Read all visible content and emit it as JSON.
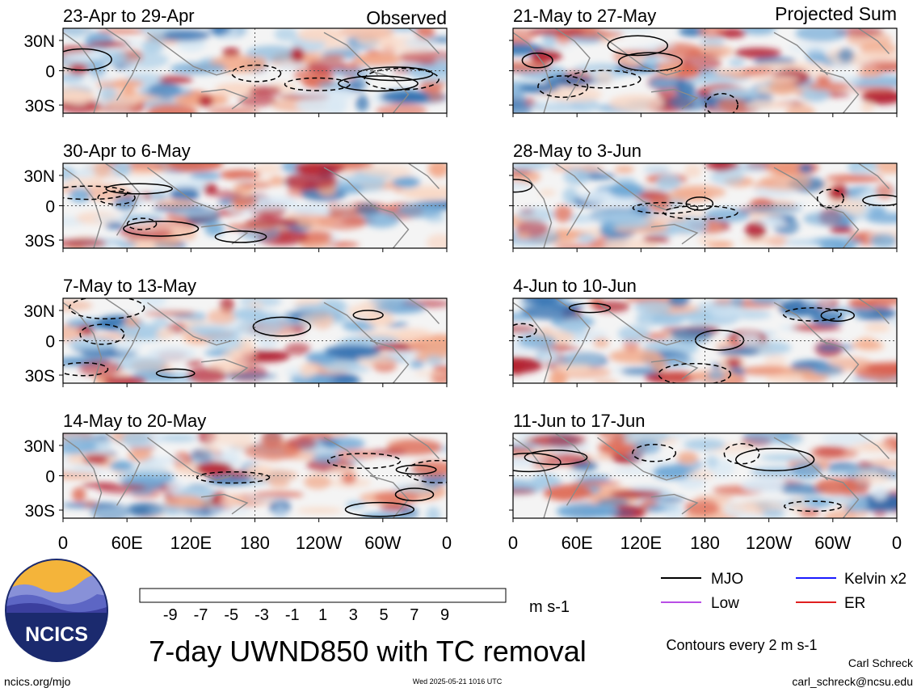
{
  "header": {
    "left_label": "Observed",
    "right_label": "Projected Sum"
  },
  "chart_data": {
    "type": "heatmap",
    "title": "7-day UWND850 with TC removal",
    "units": "m s-1",
    "contour_note": "Contours every 2 m s-1",
    "lat_ticks": [
      "30N",
      "0",
      "30S"
    ],
    "lon_ticks": [
      "0",
      "60E",
      "120E",
      "180",
      "120W",
      "60W",
      "0"
    ],
    "lat_range": [
      -40,
      40
    ],
    "lon_range": [
      0,
      360
    ],
    "panels": [
      {
        "id": "obs-1",
        "column": "observed",
        "period": "23-Apr to 29-Apr"
      },
      {
        "id": "obs-2",
        "column": "observed",
        "period": "30-Apr to 6-May"
      },
      {
        "id": "obs-3",
        "column": "observed",
        "period": "7-May to 13-May"
      },
      {
        "id": "obs-4",
        "column": "observed",
        "period": "14-May to 20-May"
      },
      {
        "id": "proj-1",
        "column": "projected",
        "period": "21-May to 27-May"
      },
      {
        "id": "proj-2",
        "column": "projected",
        "period": "28-May to 3-Jun"
      },
      {
        "id": "proj-3",
        "column": "projected",
        "period": "4-Jun to 10-Jun"
      },
      {
        "id": "proj-4",
        "column": "projected",
        "period": "11-Jun to 17-Jun"
      }
    ],
    "colorbar": {
      "labels": [
        "-9",
        "-7",
        "-5",
        "-3",
        "-1",
        "1",
        "3",
        "5",
        "7",
        "9"
      ],
      "colors": [
        "#0a2f5c",
        "#1f63a8",
        "#3f85c3",
        "#6fa8d6",
        "#a6cbe6",
        "#d8e8f4",
        "#fbfbfb",
        "#f9d7c4",
        "#f2a98a",
        "#de6a55",
        "#b42030",
        "#6b0a20"
      ]
    },
    "legend": [
      {
        "label": "MJO",
        "color": "#000000"
      },
      {
        "label": "Kelvin x2",
        "color": "#1a1aff"
      },
      {
        "label": "Low",
        "color": "#b84ee6"
      },
      {
        "label": "ER",
        "color": "#e02020"
      }
    ]
  },
  "footer": {
    "logo_text": "NCICS",
    "url": "ncics.org/mjo",
    "timestamp": "Wed 2025-05-21 1016 UTC",
    "author": "Carl Schreck",
    "email": "carl_schreck@ncsu.edu"
  }
}
